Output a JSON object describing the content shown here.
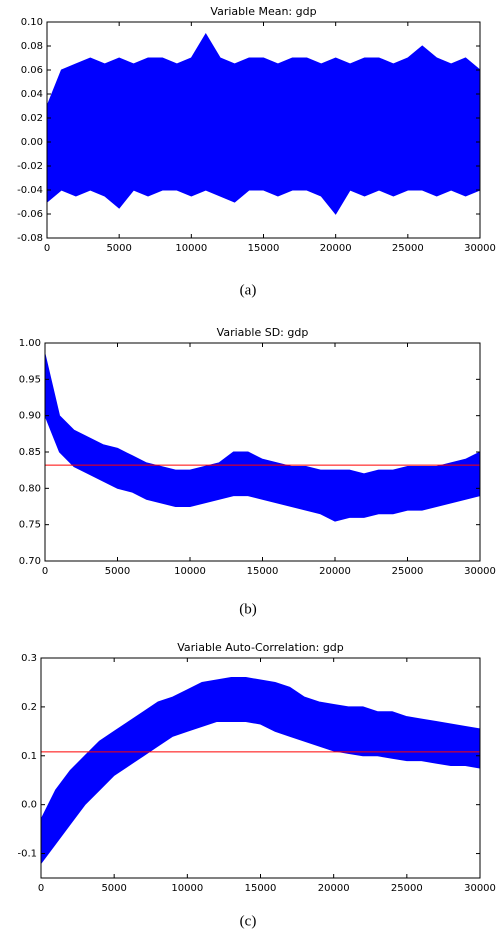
{
  "chart_data": [
    {
      "type": "band",
      "title": "Variable Mean: gdp",
      "caption": "(a)",
      "color": "#0000ff",
      "x": [
        0,
        1000,
        2000,
        3000,
        4000,
        5000,
        6000,
        7000,
        8000,
        9000,
        10000,
        11000,
        12000,
        13000,
        14000,
        15000,
        16000,
        17000,
        18000,
        19000,
        20000,
        21000,
        22000,
        23000,
        24000,
        25000,
        26000,
        27000,
        28000,
        29000,
        30000
      ],
      "upper": [
        0.03,
        0.06,
        0.065,
        0.07,
        0.065,
        0.07,
        0.065,
        0.07,
        0.07,
        0.065,
        0.07,
        0.09,
        0.07,
        0.065,
        0.07,
        0.07,
        0.065,
        0.07,
        0.07,
        0.065,
        0.07,
        0.065,
        0.07,
        0.07,
        0.065,
        0.07,
        0.08,
        0.07,
        0.065,
        0.07,
        0.06
      ],
      "lower": [
        -0.05,
        -0.04,
        -0.045,
        -0.04,
        -0.045,
        -0.055,
        -0.04,
        -0.045,
        -0.04,
        -0.04,
        -0.045,
        -0.04,
        -0.045,
        -0.05,
        -0.04,
        -0.04,
        -0.045,
        -0.04,
        -0.04,
        -0.045,
        -0.06,
        -0.04,
        -0.045,
        -0.04,
        -0.045,
        -0.04,
        -0.04,
        -0.045,
        -0.04,
        -0.045,
        -0.04
      ],
      "xlim": [
        0,
        30000
      ],
      "xticks": [
        0,
        5000,
        10000,
        15000,
        20000,
        25000,
        30000
      ],
      "ylim": [
        -0.08,
        0.1
      ],
      "yticks": [
        -0.08,
        -0.06,
        -0.04,
        -0.02,
        {
          "value": 0,
          "label": "0.00"
        },
        0.02,
        0.04,
        0.06,
        0.08,
        {
          "value": 0.1,
          "label": "0.10"
        }
      ]
    },
    {
      "type": "band",
      "title": "Variable SD: gdp",
      "caption": "(b)",
      "color": "#0000ff",
      "x": [
        0,
        1000,
        2000,
        3000,
        4000,
        5000,
        6000,
        7000,
        8000,
        9000,
        10000,
        11000,
        12000,
        13000,
        14000,
        15000,
        16000,
        17000,
        18000,
        19000,
        20000,
        21000,
        22000,
        23000,
        24000,
        25000,
        26000,
        27000,
        28000,
        29000,
        30000
      ],
      "upper": [
        0.985,
        0.9,
        0.88,
        0.87,
        0.86,
        0.855,
        0.845,
        0.835,
        0.83,
        0.825,
        0.825,
        0.83,
        0.835,
        0.85,
        0.85,
        0.84,
        0.835,
        0.83,
        0.83,
        0.825,
        0.825,
        0.825,
        0.82,
        0.825,
        0.825,
        0.83,
        0.83,
        0.83,
        0.835,
        0.84,
        0.85
      ],
      "lower": [
        0.9,
        0.85,
        0.83,
        0.82,
        0.81,
        0.8,
        0.795,
        0.785,
        0.78,
        0.775,
        0.775,
        0.78,
        0.785,
        0.79,
        0.79,
        0.785,
        0.78,
        0.775,
        0.77,
        0.765,
        0.755,
        0.76,
        0.76,
        0.765,
        0.765,
        0.77,
        0.77,
        0.775,
        0.78,
        0.785,
        0.79
      ],
      "hline": 0.832,
      "hline_color": "#ff0000",
      "xlim": [
        0,
        30000
      ],
      "xticks": [
        0,
        5000,
        10000,
        15000,
        20000,
        25000,
        30000
      ],
      "ylim": [
        0.7,
        1.0
      ],
      "yticks": [
        {
          "value": 0.7,
          "label": "0.70"
        },
        0.75,
        {
          "value": 0.8,
          "label": "0.80"
        },
        0.85,
        {
          "value": 0.9,
          "label": "0.90"
        },
        0.95,
        {
          "value": 1.0,
          "label": "1.00"
        }
      ]
    },
    {
      "type": "band",
      "title": "Variable Auto-Correlation: gdp",
      "caption": "(c)",
      "color": "#0000ff",
      "x": [
        0,
        1000,
        2000,
        3000,
        4000,
        5000,
        6000,
        7000,
        8000,
        9000,
        10000,
        11000,
        12000,
        13000,
        14000,
        15000,
        16000,
        17000,
        18000,
        19000,
        20000,
        21000,
        22000,
        23000,
        24000,
        25000,
        26000,
        27000,
        28000,
        29000,
        30000
      ],
      "upper": [
        -0.03,
        0.03,
        0.07,
        0.1,
        0.13,
        0.15,
        0.17,
        0.19,
        0.21,
        0.22,
        0.235,
        0.25,
        0.255,
        0.26,
        0.26,
        0.255,
        0.25,
        0.24,
        0.22,
        0.21,
        0.205,
        0.2,
        0.2,
        0.19,
        0.19,
        0.18,
        0.175,
        0.17,
        0.165,
        0.16,
        0.155
      ],
      "lower": [
        -0.12,
        -0.08,
        -0.04,
        0.0,
        0.03,
        0.06,
        0.08,
        0.1,
        0.12,
        0.14,
        0.15,
        0.16,
        0.17,
        0.17,
        0.17,
        0.165,
        0.15,
        0.14,
        0.13,
        0.12,
        0.11,
        0.105,
        0.1,
        0.1,
        0.095,
        0.09,
        0.09,
        0.085,
        0.08,
        0.08,
        0.075
      ],
      "hline": 0.108,
      "hline_color": "#ff0000",
      "xlim": [
        0,
        30000
      ],
      "xticks": [
        0,
        5000,
        10000,
        15000,
        20000,
        25000,
        30000
      ],
      "ylim": [
        -0.15,
        0.3
      ],
      "yticks": [
        -0.1,
        {
          "value": 0,
          "label": "0.0"
        },
        0.1,
        0.2,
        0.3
      ]
    }
  ]
}
